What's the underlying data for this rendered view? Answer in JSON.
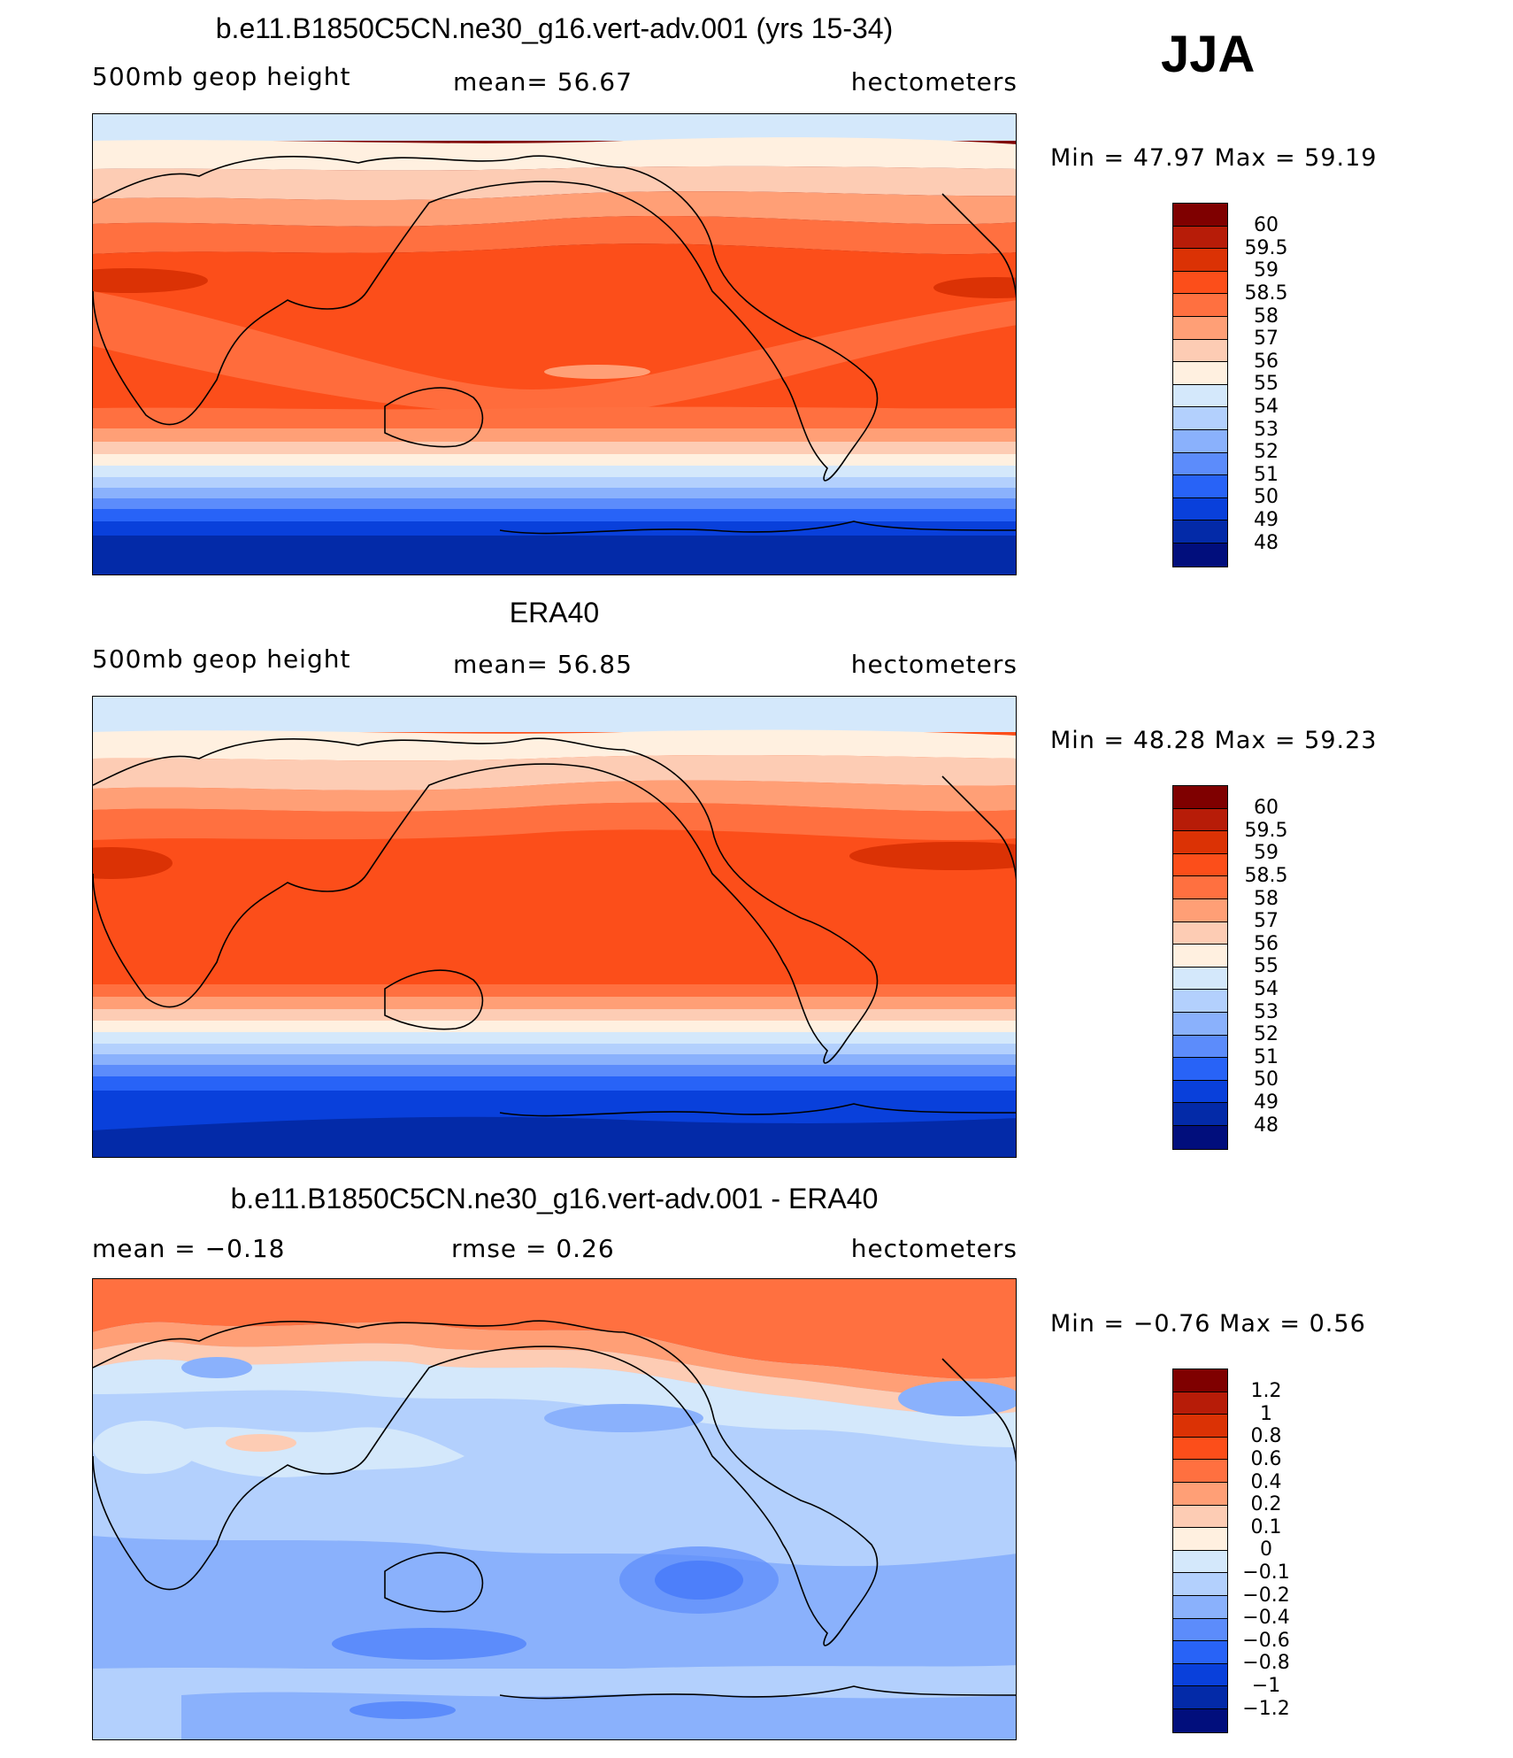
{
  "season": "JJA",
  "chart_data": [
    {
      "type": "heatmap",
      "title": "b.e11.B1850C5CN.ne30_g16.vert-adv.001 (yrs 15-34)",
      "variable": "500mb geop height",
      "stat_text": "mean=   56.67",
      "mean": 56.67,
      "units": "hectometers",
      "minmax_text": "Min =   47.97 Max =   59.19",
      "min": 47.97,
      "max": 59.19,
      "levels": [
        "60",
        "59.5",
        "59",
        "58.5",
        "58",
        "57",
        "56",
        "55",
        "54",
        "53",
        "52",
        "51",
        "50",
        "49",
        "48"
      ],
      "colors": [
        "#7f0000",
        "#b71c08",
        "#db3205",
        "#fc4e1a",
        "#ff7040",
        "#ff9f76",
        "#fdccb4",
        "#fff0e0",
        "#d4e8fb",
        "#b3d0fd",
        "#8ab1fc",
        "#5c8cfb",
        "#2863f7",
        "#0940db",
        "#032aa8",
        "#010e7c"
      ]
    },
    {
      "type": "heatmap",
      "title": "ERA40",
      "variable": "500mb geop height",
      "stat_text": "mean=   56.85",
      "mean": 56.85,
      "units": "hectometers",
      "minmax_text": "Min =   48.28 Max =   59.23",
      "min": 48.28,
      "max": 59.23,
      "levels": [
        "60",
        "59.5",
        "59",
        "58.5",
        "58",
        "57",
        "56",
        "55",
        "54",
        "53",
        "52",
        "51",
        "50",
        "49",
        "48"
      ],
      "colors": [
        "#7f0000",
        "#b71c08",
        "#db3205",
        "#fc4e1a",
        "#ff7040",
        "#ff9f76",
        "#fdccb4",
        "#fff0e0",
        "#d4e8fb",
        "#b3d0fd",
        "#8ab1fc",
        "#5c8cfb",
        "#2863f7",
        "#0940db",
        "#032aa8",
        "#010e7c"
      ]
    },
    {
      "type": "heatmap",
      "title": "b.e11.B1850C5CN.ne30_g16.vert-adv.001 - ERA40",
      "variable": "mean =   −0.18",
      "stat_text": "rmse =    0.26",
      "mean": -0.18,
      "rmse": 0.26,
      "units": "hectometers",
      "minmax_text": "Min =  −0.76 Max =    0.56",
      "min": -0.76,
      "max": 0.56,
      "levels": [
        "1.2",
        "1",
        "0.8",
        "0.6",
        "0.4",
        "0.2",
        "0.1",
        "0",
        "−0.1",
        "−0.2",
        "−0.4",
        "−0.6",
        "−0.8",
        "−1",
        "−1.2"
      ],
      "colors": [
        "#7f0000",
        "#b71c08",
        "#db3205",
        "#fc4e1a",
        "#ff7040",
        "#ff9f76",
        "#fdccb4",
        "#fff0e0",
        "#d4e8fb",
        "#b3d0fd",
        "#8ab1fc",
        "#5c8cfb",
        "#2863f7",
        "#0940db",
        "#032aa8",
        "#010e7c"
      ]
    }
  ]
}
